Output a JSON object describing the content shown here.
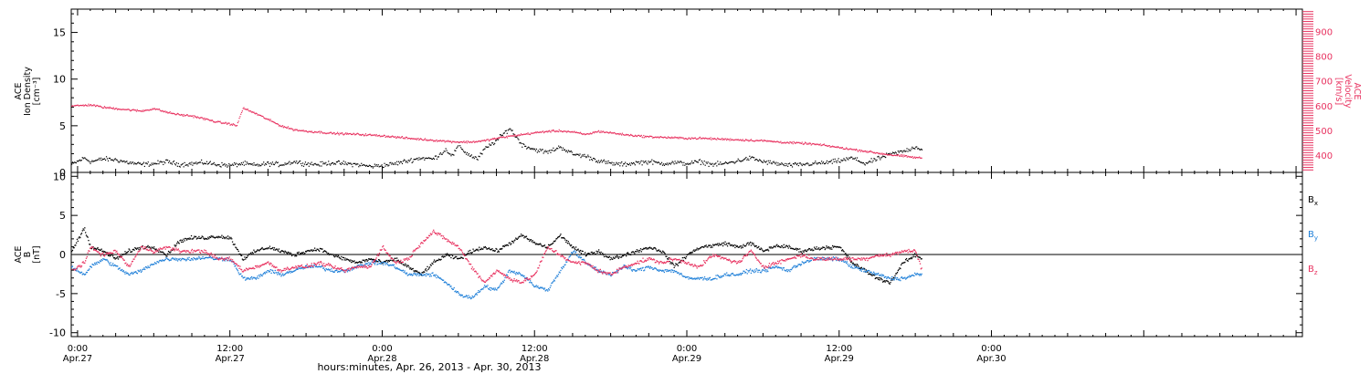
{
  "colors": {
    "black": "#000000",
    "pink": "#e8315f",
    "blue": "#1e7fd8",
    "axis": "#000000"
  },
  "top_panel": {
    "ylabel_lines": [
      "ACE",
      "Ion Density",
      "[cm⁻³]"
    ],
    "y2label_lines": [
      "ACE",
      "Velocity",
      "[km/s]"
    ]
  },
  "bottom_panel": {
    "ylabel_lines": [
      "ACE",
      "B",
      "[nT]"
    ],
    "legend": [
      "Bx",
      "By",
      "Bz"
    ]
  },
  "x_axis": {
    "title": "hours:minutes, Apr. 26, 2013 - Apr. 30, 2013"
  },
  "chart_data": [
    {
      "type": "scatter",
      "panel": "top",
      "x_unit": "hours since Apr.27 00:00",
      "xlim": [
        -0.5,
        96.5
      ],
      "x_ticks": [
        {
          "x": 0,
          "time": "0:00",
          "date": "Apr.27"
        },
        {
          "x": 12,
          "time": "12:00",
          "date": "Apr.27"
        },
        {
          "x": 24,
          "time": "0:00",
          "date": "Apr.28"
        },
        {
          "x": 36,
          "time": "12:00",
          "date": "Apr.28"
        },
        {
          "x": 48,
          "time": "0:00",
          "date": "Apr.29"
        },
        {
          "x": 60,
          "time": "12:00",
          "date": "Apr.29"
        },
        {
          "x": 72,
          "time": "0:00",
          "date": "Apr.30"
        }
      ],
      "ylim": [
        0,
        17.5
      ],
      "yticks": [
        0,
        5,
        10,
        15
      ],
      "y2lim": [
        330,
        990
      ],
      "y2ticks": [
        400,
        500,
        600,
        700,
        800,
        900
      ],
      "series": [
        {
          "name": "Ion Density",
          "axis": "left",
          "color": "#000000",
          "x": [
            -0.5,
            0.5,
            1,
            2,
            3,
            4,
            5,
            6,
            7,
            8,
            9,
            10,
            11,
            12,
            13,
            14,
            15,
            16,
            17,
            18,
            19,
            20,
            21,
            22,
            23,
            24,
            25,
            26,
            27,
            28,
            29,
            29.5,
            30,
            30.5,
            31,
            31.5,
            32,
            33,
            34,
            35,
            36,
            37,
            38,
            39,
            40,
            41,
            42,
            43,
            44,
            45,
            46,
            47,
            48,
            49,
            50,
            51,
            52,
            53,
            54,
            55,
            56,
            57,
            58,
            59,
            60,
            61,
            62,
            63,
            64,
            65,
            66,
            66.5
          ],
          "y": [
            0.9,
            1.6,
            1.2,
            1.5,
            1.4,
            1.1,
            0.9,
            1.0,
            1.2,
            0.9,
            1.0,
            1.1,
            0.9,
            0.8,
            1.0,
            0.8,
            1.0,
            0.9,
            1.2,
            1.0,
            0.9,
            1.1,
            1.0,
            0.9,
            0.7,
            0.8,
            1.0,
            1.3,
            1.6,
            1.5,
            2.5,
            1.8,
            3.0,
            2.2,
            1.8,
            1.5,
            2.5,
            3.5,
            4.8,
            3.0,
            2.5,
            2.2,
            2.8,
            2.0,
            1.8,
            1.3,
            1.0,
            0.9,
            1.1,
            1.2,
            1.0,
            1.1,
            1.0,
            1.2,
            0.9,
            1.0,
            1.3,
            1.6,
            1.2,
            1.0,
            0.8,
            0.9,
            1.0,
            1.1,
            1.3,
            1.6,
            1.0,
            1.5,
            2.0,
            2.3,
            2.8,
            2.5
          ]
        },
        {
          "name": "Velocity",
          "axis": "right",
          "color": "#e8315f",
          "x": [
            -0.5,
            1,
            2,
            3,
            4,
            5,
            6,
            7,
            8,
            9,
            10,
            11,
            12,
            12.5,
            13,
            14,
            15,
            16,
            17,
            18,
            19,
            20,
            21,
            22,
            23,
            24,
            25,
            26,
            27,
            28,
            29,
            30,
            31,
            32,
            33,
            34,
            35,
            36,
            37,
            38,
            39,
            40,
            41,
            42,
            43,
            44,
            45,
            46,
            47,
            48,
            49,
            50,
            51,
            52,
            53,
            54,
            55,
            56,
            57,
            58,
            59,
            60,
            61,
            62,
            63,
            64,
            65,
            66,
            66.5
          ],
          "y": [
            600,
            605,
            595,
            590,
            585,
            580,
            590,
            575,
            565,
            560,
            548,
            535,
            528,
            520,
            592,
            570,
            545,
            520,
            505,
            498,
            495,
            490,
            488,
            486,
            483,
            480,
            475,
            470,
            466,
            462,
            458,
            455,
            455,
            460,
            470,
            478,
            485,
            492,
            498,
            500,
            495,
            485,
            498,
            492,
            485,
            480,
            476,
            474,
            472,
            470,
            470,
            468,
            466,
            464,
            462,
            460,
            456,
            452,
            450,
            446,
            440,
            432,
            425,
            418,
            410,
            403,
            398,
            392,
            390
          ]
        }
      ]
    },
    {
      "type": "scatter",
      "panel": "bottom",
      "x_unit": "hours since Apr.27 00:00",
      "xlim": [
        -0.5,
        96.5
      ],
      "ylim": [
        -10.5,
        10.5
      ],
      "yticks": [
        -10,
        -5,
        0,
        5,
        10
      ],
      "series": [
        {
          "name": "Bx",
          "color": "#000000",
          "x": [
            -0.5,
            0.5,
            1,
            2,
            3,
            4,
            5,
            6,
            7,
            8,
            9,
            10,
            11,
            12,
            13,
            14,
            15,
            16,
            17,
            18,
            19,
            20,
            21,
            22,
            23,
            24,
            25,
            26,
            27,
            28,
            29,
            30,
            31,
            32,
            33,
            34,
            35,
            36,
            37,
            38,
            39,
            40,
            41,
            42,
            43,
            44,
            45,
            46,
            47,
            48,
            49,
            50,
            51,
            52,
            53,
            54,
            55,
            56,
            57,
            58,
            59,
            60,
            61,
            62,
            63,
            64,
            65,
            66,
            66.5
          ],
          "y": [
            0.5,
            3.5,
            1.0,
            0.5,
            -0.5,
            0.5,
            1.0,
            1.0,
            0.0,
            1.8,
            2.2,
            2.2,
            2.4,
            2.2,
            -0.5,
            0.5,
            1.0,
            0.5,
            0.0,
            0.5,
            0.8,
            0.0,
            -0.5,
            -1.0,
            -0.5,
            -1.0,
            -0.5,
            -1.5,
            -2.5,
            -1.0,
            0.0,
            -0.5,
            0.5,
            1.0,
            0.5,
            1.5,
            2.5,
            1.5,
            1.0,
            2.5,
            1.0,
            0.0,
            0.5,
            -0.5,
            0.0,
            0.5,
            1.0,
            0.5,
            -1.5,
            0.0,
            1.0,
            1.2,
            1.5,
            1.0,
            1.5,
            0.5,
            1.2,
            1.0,
            0.5,
            0.8,
            1.0,
            1.0,
            -1.0,
            -2.0,
            -3.0,
            -3.5,
            -1.0,
            0.0,
            -0.5
          ]
        },
        {
          "name": "By",
          "color": "#1e7fd8",
          "x": [
            -0.5,
            0.5,
            1,
            2,
            3,
            4,
            5,
            6,
            7,
            8,
            9,
            10,
            11,
            12,
            13,
            14,
            15,
            16,
            17,
            18,
            19,
            20,
            21,
            22,
            23,
            24,
            25,
            26,
            27,
            28,
            29,
            30,
            31,
            32,
            33,
            34,
            35,
            36,
            37,
            38,
            39,
            40,
            41,
            42,
            43,
            44,
            45,
            46,
            47,
            48,
            49,
            50,
            51,
            52,
            53,
            54,
            55,
            56,
            57,
            58,
            59,
            60,
            61,
            62,
            63,
            64,
            65,
            66,
            66.5
          ],
          "y": [
            -1.5,
            -2.5,
            -1.5,
            -0.5,
            -1.5,
            -2.5,
            -2.0,
            -1.0,
            -0.5,
            -0.5,
            -0.5,
            -0.3,
            -0.5,
            -0.5,
            -3.0,
            -3.0,
            -2.0,
            -2.5,
            -2.0,
            -1.5,
            -1.5,
            -2.0,
            -2.0,
            -1.5,
            -1.0,
            -1.0,
            -1.5,
            -2.5,
            -2.5,
            -2.5,
            -3.5,
            -5.0,
            -5.5,
            -4.0,
            -4.5,
            -2.0,
            -2.5,
            -4.0,
            -4.5,
            -2.0,
            0.5,
            -1.0,
            -2.0,
            -2.5,
            -1.5,
            -2.0,
            -1.5,
            -2.0,
            -2.0,
            -3.0,
            -3.0,
            -3.0,
            -2.5,
            -2.5,
            -2.0,
            -2.0,
            -1.5,
            -2.0,
            -1.0,
            -0.5,
            -0.5,
            -0.5,
            -1.5,
            -2.0,
            -2.5,
            -3.0,
            -3.0,
            -2.5,
            -2.5
          ]
        },
        {
          "name": "Bz",
          "color": "#e8315f",
          "x": [
            -0.5,
            0.5,
            1,
            2,
            3,
            4,
            5,
            6,
            7,
            8,
            9,
            10,
            11,
            12,
            13,
            14,
            15,
            16,
            17,
            18,
            19,
            20,
            21,
            22,
            23,
            24,
            25,
            26,
            27,
            28,
            29,
            30,
            31,
            32,
            33,
            34,
            35,
            36,
            37,
            38,
            39,
            40,
            41,
            42,
            43,
            44,
            45,
            46,
            47,
            48,
            49,
            50,
            51,
            52,
            53,
            54,
            55,
            56,
            57,
            58,
            59,
            60,
            61,
            62,
            63,
            64,
            65,
            66,
            66.5
          ],
          "y": [
            -2.0,
            -1.0,
            1.0,
            0.0,
            0.5,
            -1.5,
            1.0,
            0.5,
            1.0,
            0.5,
            0.5,
            0.5,
            -0.5,
            -0.5,
            -2.0,
            -1.5,
            -1.0,
            -2.0,
            -1.5,
            -1.5,
            -1.0,
            -1.5,
            -2.0,
            -1.5,
            -1.5,
            1.0,
            -1.0,
            -0.5,
            1.5,
            3.0,
            2.0,
            1.0,
            -1.5,
            -3.5,
            -2.0,
            -3.0,
            -3.5,
            -2.5,
            1.0,
            0.0,
            -1.0,
            -1.0,
            -2.0,
            -2.5,
            -1.5,
            -1.0,
            -0.5,
            -1.0,
            -0.5,
            -1.0,
            -1.5,
            0.0,
            -0.5,
            -1.0,
            0.5,
            -1.5,
            -1.0,
            -0.5,
            0.0,
            -0.5,
            -0.5,
            -0.5,
            -0.5,
            -0.5,
            0.0,
            0.0,
            0.5,
            0.5,
            -2.0
          ]
        }
      ]
    }
  ]
}
